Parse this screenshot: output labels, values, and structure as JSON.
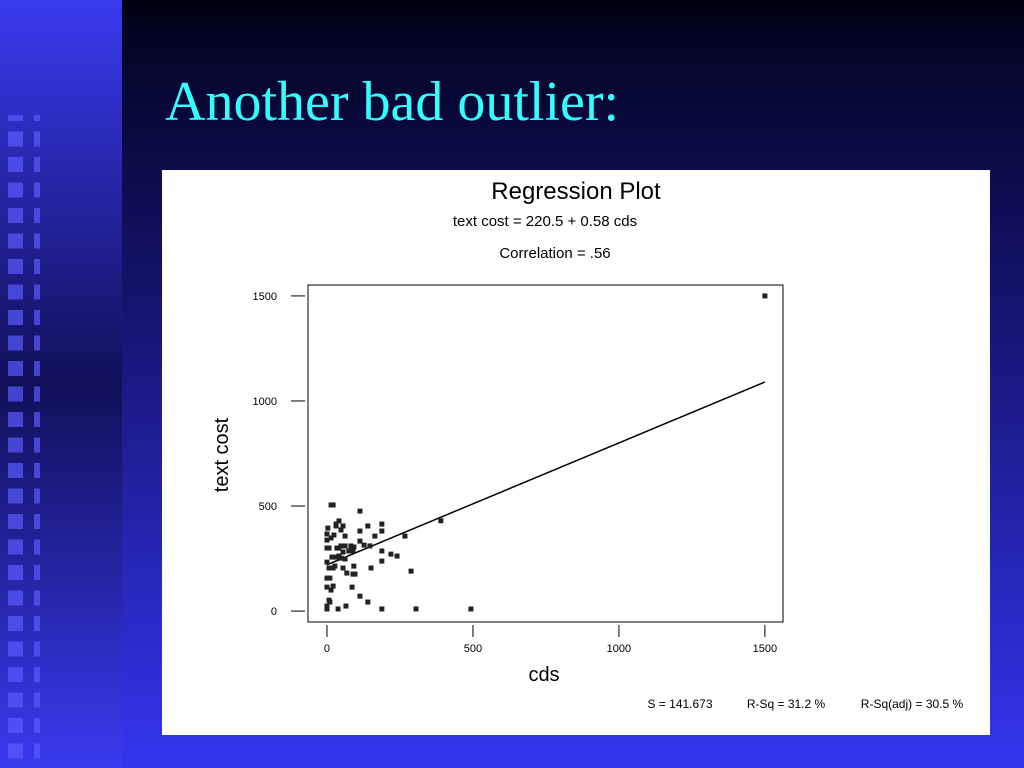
{
  "slide_title": "Another bad outlier:",
  "chart_data": {
    "type": "scatter",
    "title": "Regression Plot",
    "subtitle": "text cost = 220.5 + 0.58 cds",
    "annotation": "Correlation = .56",
    "xlabel": "cds",
    "ylabel": "text cost",
    "stats": [
      "S = 141.673",
      "R-Sq = 31.2 %",
      "R-Sq(adj) = 30.5 %"
    ],
    "color": "#222222",
    "xlim": [
      -65,
      1562
    ],
    "ylim": [
      -52,
      1552
    ],
    "xticks": [
      0,
      500,
      1000,
      1500
    ],
    "yticks": [
      0,
      500,
      1000,
      1500
    ],
    "fit_line": {
      "x": [
        0,
        1500
      ],
      "y": [
        220.5,
        1090.5
      ]
    },
    "x": [
      1500,
      390,
      493,
      305,
      188,
      288,
      267,
      240,
      219,
      188,
      188,
      188,
      188,
      164,
      113,
      113,
      113,
      127,
      140,
      147,
      151,
      140,
      113,
      86,
      92,
      89,
      92,
      65,
      38,
      68,
      55,
      55,
      62,
      55,
      41,
      31,
      24,
      14,
      21,
      7,
      0,
      0,
      0,
      0,
      0,
      0,
      10,
      10,
      14,
      21,
      7,
      21,
      31,
      34,
      41,
      48,
      48,
      62,
      75,
      82,
      89,
      96,
      48,
      14,
      0,
      3,
      7,
      31,
      41,
      27,
      0,
      62,
      17
    ],
    "y": [
      1500,
      430,
      10,
      10,
      10,
      190,
      357,
      262,
      271,
      414,
      381,
      286,
      238,
      357,
      476,
      381,
      333,
      314,
      405,
      310,
      205,
      43,
      71,
      114,
      214,
      176,
      305,
      24,
      10,
      181,
      205,
      281,
      357,
      405,
      429,
      414,
      362,
      505,
      505,
      300,
      367,
      338,
      233,
      114,
      10,
      24,
      157,
      43,
      100,
      119,
      52,
      205,
      257,
      300,
      300,
      310,
      252,
      248,
      286,
      310,
      286,
      176,
      386,
      348,
      300,
      395,
      205,
      405,
      262,
      214,
      157,
      310,
      257
    ]
  }
}
